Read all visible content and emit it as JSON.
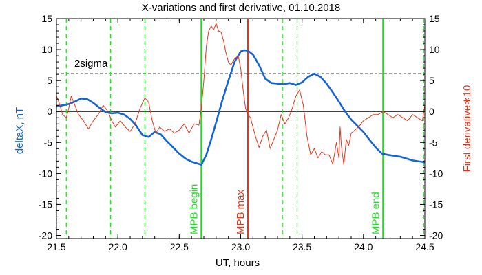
{
  "chart_data": {
    "type": "line",
    "title": "X-variations and first derivative, 01.10.2018",
    "xlabel": "UT, hours",
    "ylabel_left": "deltaX, nT",
    "ylabel_right": "First derivative∗10",
    "xlim": [
      21.5,
      24.5
    ],
    "ylim": [
      -20.5,
      15
    ],
    "x_ticks": [
      "21.5",
      "22.0",
      "22.5",
      "23.0",
      "23.5",
      "24.0",
      "24.5"
    ],
    "y_ticks": [
      "15",
      "10",
      "5",
      "0",
      "-5",
      "-10",
      "-15",
      "-20"
    ],
    "y_tick_values": [
      15,
      10,
      5,
      0,
      -5,
      -10,
      -15,
      -20
    ],
    "x_tick_values": [
      21.5,
      22.0,
      22.5,
      23.0,
      23.5,
      24.0,
      24.5
    ],
    "sigma_label": "2sigma",
    "sigma_level": 6.1,
    "colors": {
      "deltaX": "#1464d8",
      "derivative": "#e8341c",
      "mpb": "#19e619",
      "mpb_max": "#e8341c",
      "left_axis_label": "#1464d8",
      "right_axis_label": "#e8341c"
    },
    "vlines": [
      {
        "x": 21.58,
        "style": "dashed",
        "color": "#19e619",
        "label": ""
      },
      {
        "x": 21.94,
        "style": "dashed",
        "color": "#19e619",
        "label": ""
      },
      {
        "x": 22.22,
        "style": "dashed",
        "color": "#19e619",
        "label": ""
      },
      {
        "x": 22.68,
        "style": "solid",
        "color": "#19e619",
        "label": "MPB begin"
      },
      {
        "x": 23.06,
        "style": "solid",
        "color": "#e8341c",
        "label": "MPB max"
      },
      {
        "x": 23.34,
        "style": "dashed",
        "color": "#19e619",
        "label": ""
      },
      {
        "x": 23.46,
        "style": "dashed",
        "color": "#19e619",
        "label": ""
      },
      {
        "x": 24.16,
        "style": "solid",
        "color": "#19e619",
        "label": "MPB end"
      },
      {
        "x": 24.49,
        "style": "dashed",
        "color": "#19e619",
        "label": ""
      }
    ],
    "series": [
      {
        "name": "deltaX, nT",
        "color": "#1464d8",
        "x": [
          21.5,
          21.55,
          21.6,
          21.65,
          21.7,
          21.75,
          21.8,
          21.85,
          21.9,
          21.95,
          22.0,
          22.05,
          22.1,
          22.15,
          22.2,
          22.25,
          22.3,
          22.35,
          22.4,
          22.45,
          22.5,
          22.55,
          22.6,
          22.65,
          22.68,
          22.72,
          22.76,
          22.8,
          22.85,
          22.9,
          22.95,
          23.0,
          23.03,
          23.06,
          23.1,
          23.15,
          23.2,
          23.25,
          23.3,
          23.35,
          23.4,
          23.45,
          23.5,
          23.55,
          23.6,
          23.65,
          23.7,
          23.75,
          23.8,
          23.85,
          23.9,
          23.95,
          24.0,
          24.05,
          24.1,
          24.15,
          24.2,
          24.3,
          24.4,
          24.5
        ],
        "values": [
          0.8,
          1.0,
          1.2,
          1.6,
          2.1,
          2.0,
          1.4,
          0.6,
          -0.1,
          -0.3,
          -0.2,
          -0.5,
          -1.2,
          -2.3,
          -3.8,
          -4.1,
          -3.3,
          -3.7,
          -4.8,
          -5.8,
          -6.8,
          -7.6,
          -8.1,
          -8.4,
          -8.6,
          -7.0,
          -4.5,
          -1.8,
          1.8,
          5.0,
          8.0,
          9.7,
          9.9,
          9.8,
          9.2,
          7.5,
          5.3,
          4.6,
          4.5,
          4.4,
          4.6,
          4.3,
          4.7,
          5.6,
          6.1,
          5.6,
          4.5,
          3.1,
          1.6,
          0.0,
          -1.3,
          -2.3,
          -3.3,
          -4.6,
          -5.8,
          -6.8,
          -7.0,
          -7.3,
          -7.9,
          -8.2
        ]
      },
      {
        "name": "First derivative∗10",
        "color": "#e8341c",
        "x": [
          21.5,
          21.52,
          21.55,
          21.58,
          21.6,
          21.62,
          21.65,
          21.68,
          21.72,
          21.76,
          21.8,
          21.84,
          21.88,
          21.92,
          21.95,
          21.98,
          22.02,
          22.06,
          22.1,
          22.14,
          22.18,
          22.22,
          22.25,
          22.28,
          22.31,
          22.34,
          22.38,
          22.42,
          22.46,
          22.5,
          22.54,
          22.58,
          22.62,
          22.66,
          22.68,
          22.7,
          22.72,
          22.74,
          22.76,
          22.78,
          22.8,
          22.82,
          22.84,
          22.86,
          22.88,
          22.9,
          22.92,
          22.95,
          22.98,
          23.0,
          23.02,
          23.04,
          23.06,
          23.08,
          23.1,
          23.12,
          23.15,
          23.18,
          23.21,
          23.24,
          23.27,
          23.3,
          23.33,
          23.36,
          23.39,
          23.42,
          23.45,
          23.48,
          23.51,
          23.54,
          23.57,
          23.6,
          23.63,
          23.66,
          23.69,
          23.72,
          23.75,
          23.78,
          23.8,
          23.81,
          23.82,
          23.84,
          23.86,
          23.88,
          23.9,
          23.93,
          23.96,
          24.0,
          24.04,
          24.08,
          24.12,
          24.16,
          24.2,
          24.24,
          24.28,
          24.32,
          24.36,
          24.4,
          24.44,
          24.48,
          24.5
        ],
        "values": [
          2.5,
          1.5,
          -0.5,
          -1.0,
          0.5,
          2.5,
          1.0,
          -0.5,
          -1.5,
          -2.8,
          -1.5,
          -0.5,
          1.0,
          0.0,
          -1.5,
          -2.5,
          -1.5,
          -2.5,
          -3.2,
          -2.0,
          0.5,
          2.2,
          1.5,
          -1.5,
          -3.5,
          -2.5,
          -3.2,
          -2.8,
          -3.5,
          -3.0,
          -2.0,
          -3.5,
          -2.0,
          -2.2,
          0.5,
          5.0,
          10.5,
          13.0,
          13.8,
          13.2,
          14.2,
          13.0,
          12.8,
          11.5,
          9.5,
          8.0,
          7.5,
          8.5,
          9.0,
          7.0,
          3.5,
          0.5,
          -0.5,
          -1.0,
          -2.5,
          -4.0,
          -5.8,
          -4.0,
          -3.0,
          -6.0,
          -4.5,
          -3.0,
          -0.5,
          -2.0,
          -1.0,
          0.5,
          2.5,
          3.5,
          1.0,
          -4.0,
          -7.0,
          -6.0,
          -7.5,
          -6.5,
          -7.0,
          -7.0,
          -8.5,
          -5.0,
          -7.5,
          -2.5,
          -5.5,
          -8.6,
          -4.5,
          -5.5,
          -3.5,
          -3.0,
          -2.5,
          -1.5,
          -1.0,
          -0.5,
          -0.5,
          0.0,
          -0.5,
          -1.0,
          -0.5,
          -1.0,
          -1.5,
          -0.5,
          -1.0,
          -1.5,
          1.0
        ]
      }
    ]
  }
}
